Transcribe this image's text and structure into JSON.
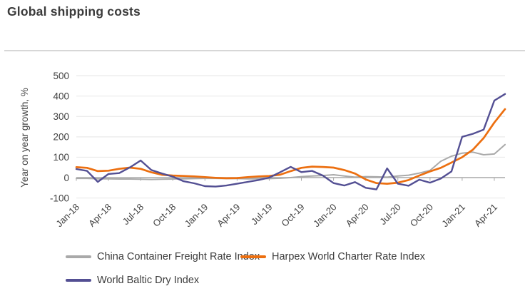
{
  "header": {
    "title": "Global shipping costs"
  },
  "axis_style": {
    "grid_color": "#eaeaea",
    "axis_color": "#a8a8a8",
    "text_color": "#414141"
  },
  "legend": {
    "items": [
      {
        "label": "China Container Freight Rate Index",
        "color": "#a9a9a9"
      },
      {
        "label": "Harpex World Charter Rate Index",
        "color": "#ec6f10"
      },
      {
        "label": "World Baltic Dry Index",
        "color": "#534f93"
      }
    ]
  },
  "chart_data": {
    "type": "line",
    "title": "Global shipping costs",
    "xlabel": "",
    "ylabel": "Year on year growth, %",
    "ylim": [
      -100,
      500
    ],
    "y_ticks": [
      500,
      400,
      300,
      200,
      100,
      0,
      -100
    ],
    "grid": "horizontal",
    "legend_position": "bottom",
    "x": [
      "Jan-18",
      "Feb-18",
      "Mar-18",
      "Apr-18",
      "May-18",
      "Jun-18",
      "Jul-18",
      "Aug-18",
      "Sep-18",
      "Oct-18",
      "Nov-18",
      "Dec-18",
      "Jan-19",
      "Feb-19",
      "Mar-19",
      "Apr-19",
      "May-19",
      "Jun-19",
      "Jul-19",
      "Aug-19",
      "Sep-19",
      "Oct-19",
      "Nov-19",
      "Dec-19",
      "Jan-20",
      "Feb-20",
      "Mar-20",
      "Apr-20",
      "May-20",
      "Jun-20",
      "Jul-20",
      "Aug-20",
      "Sep-20",
      "Oct-20",
      "Nov-20",
      "Dec-20",
      "Jan-21",
      "Feb-21",
      "Mar-21",
      "Apr-21",
      "May-21"
    ],
    "x_tick_labels": [
      "Jan-18",
      "Apr-18",
      "Jul-18",
      "Oct-18",
      "Jan-19",
      "Apr-19",
      "Jul-19",
      "Oct-19",
      "Jan-20",
      "Apr-20",
      "Jul-20",
      "Oct-20",
      "Jan-21",
      "Apr-21"
    ],
    "x_tick_every": 3,
    "series": [
      {
        "name": "China Container Freight Rate Index",
        "color": "#a9a9a9",
        "width": 2,
        "values": [
          -4,
          -4,
          -6,
          -6,
          -7,
          -7,
          -8,
          -9,
          -8,
          -7,
          -6,
          -5,
          -4,
          -4,
          -5,
          -5,
          -6,
          -6,
          -5,
          -3,
          0,
          5,
          8,
          10,
          14,
          8,
          2,
          5,
          4,
          2,
          8,
          12,
          22,
          35,
          80,
          105,
          120,
          125,
          112,
          116,
          162
        ]
      },
      {
        "name": "Harpex World Charter Rate Index",
        "color": "#ec6f10",
        "width": 2.7,
        "values": [
          51,
          48,
          32,
          34,
          43,
          49,
          43,
          26,
          14,
          10,
          8,
          6,
          2,
          -1,
          -3,
          -2,
          2,
          6,
          8,
          14,
          32,
          48,
          54,
          52,
          49,
          37,
          20,
          -9,
          -27,
          -30,
          -25,
          -12,
          10,
          30,
          48,
          74,
          100,
          137,
          194,
          270,
          336
        ]
      },
      {
        "name": "World Baltic Dry Index",
        "color": "#534f93",
        "width": 2.4,
        "values": [
          42,
          33,
          -21,
          18,
          22,
          50,
          84,
          37,
          20,
          5,
          -18,
          -28,
          -42,
          -44,
          -39,
          -30,
          -21,
          -12,
          0,
          26,
          53,
          27,
          33,
          10,
          -27,
          -39,
          -22,
          -50,
          -58,
          45,
          -30,
          -40,
          -10,
          -25,
          -5,
          30,
          200,
          215,
          235,
          378,
          410
        ]
      }
    ]
  }
}
